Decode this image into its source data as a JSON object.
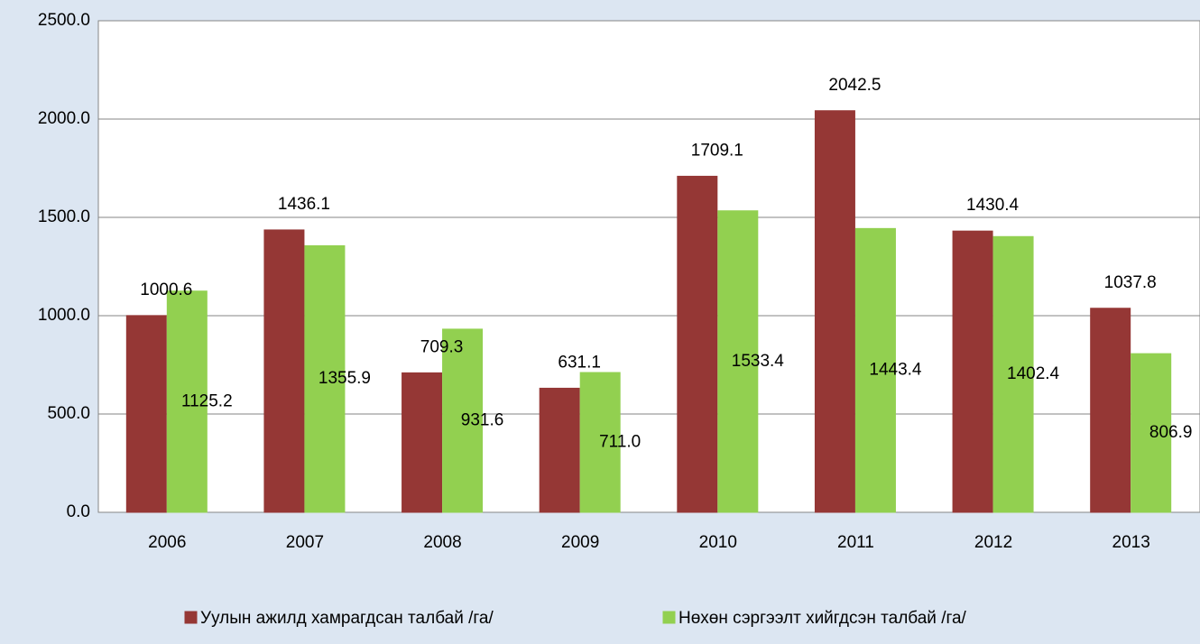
{
  "chart_data": {
    "type": "bar",
    "categories": [
      "2006",
      "2007",
      "2008",
      "2009",
      "2010",
      "2011",
      "2012",
      "2013"
    ],
    "series": [
      {
        "name": "Уулын ажилд хамрагдсан талбай /га/",
        "color": "#953735",
        "values": [
          1000.6,
          1436.1,
          709.3,
          631.1,
          1709.1,
          2042.5,
          1430.4,
          1037.8
        ]
      },
      {
        "name": "Нөхөн сэргээлт хийгдсэн талбай /га/",
        "color": "#92d050",
        "values": [
          1125.2,
          1355.9,
          931.6,
          711.0,
          1533.4,
          1443.4,
          1402.4,
          806.9
        ],
        "value_labels": [
          "1125.2",
          "1355.9",
          "931.6",
          "711.0",
          "1533.4",
          "1443.4",
          "1402.4",
          "806.9"
        ]
      }
    ],
    "ylim": [
      0,
      2500
    ],
    "yticks": [
      {
        "value": 0,
        "label": "0.0"
      },
      {
        "value": 500,
        "label": "500.0"
      },
      {
        "value": 1000,
        "label": "1000.0"
      },
      {
        "value": 1500,
        "label": "1500.0"
      },
      {
        "value": 2000,
        "label": "2000.0"
      },
      {
        "value": 2500,
        "label": "2500.0"
      }
    ],
    "grid": true,
    "legend": "bottom"
  }
}
